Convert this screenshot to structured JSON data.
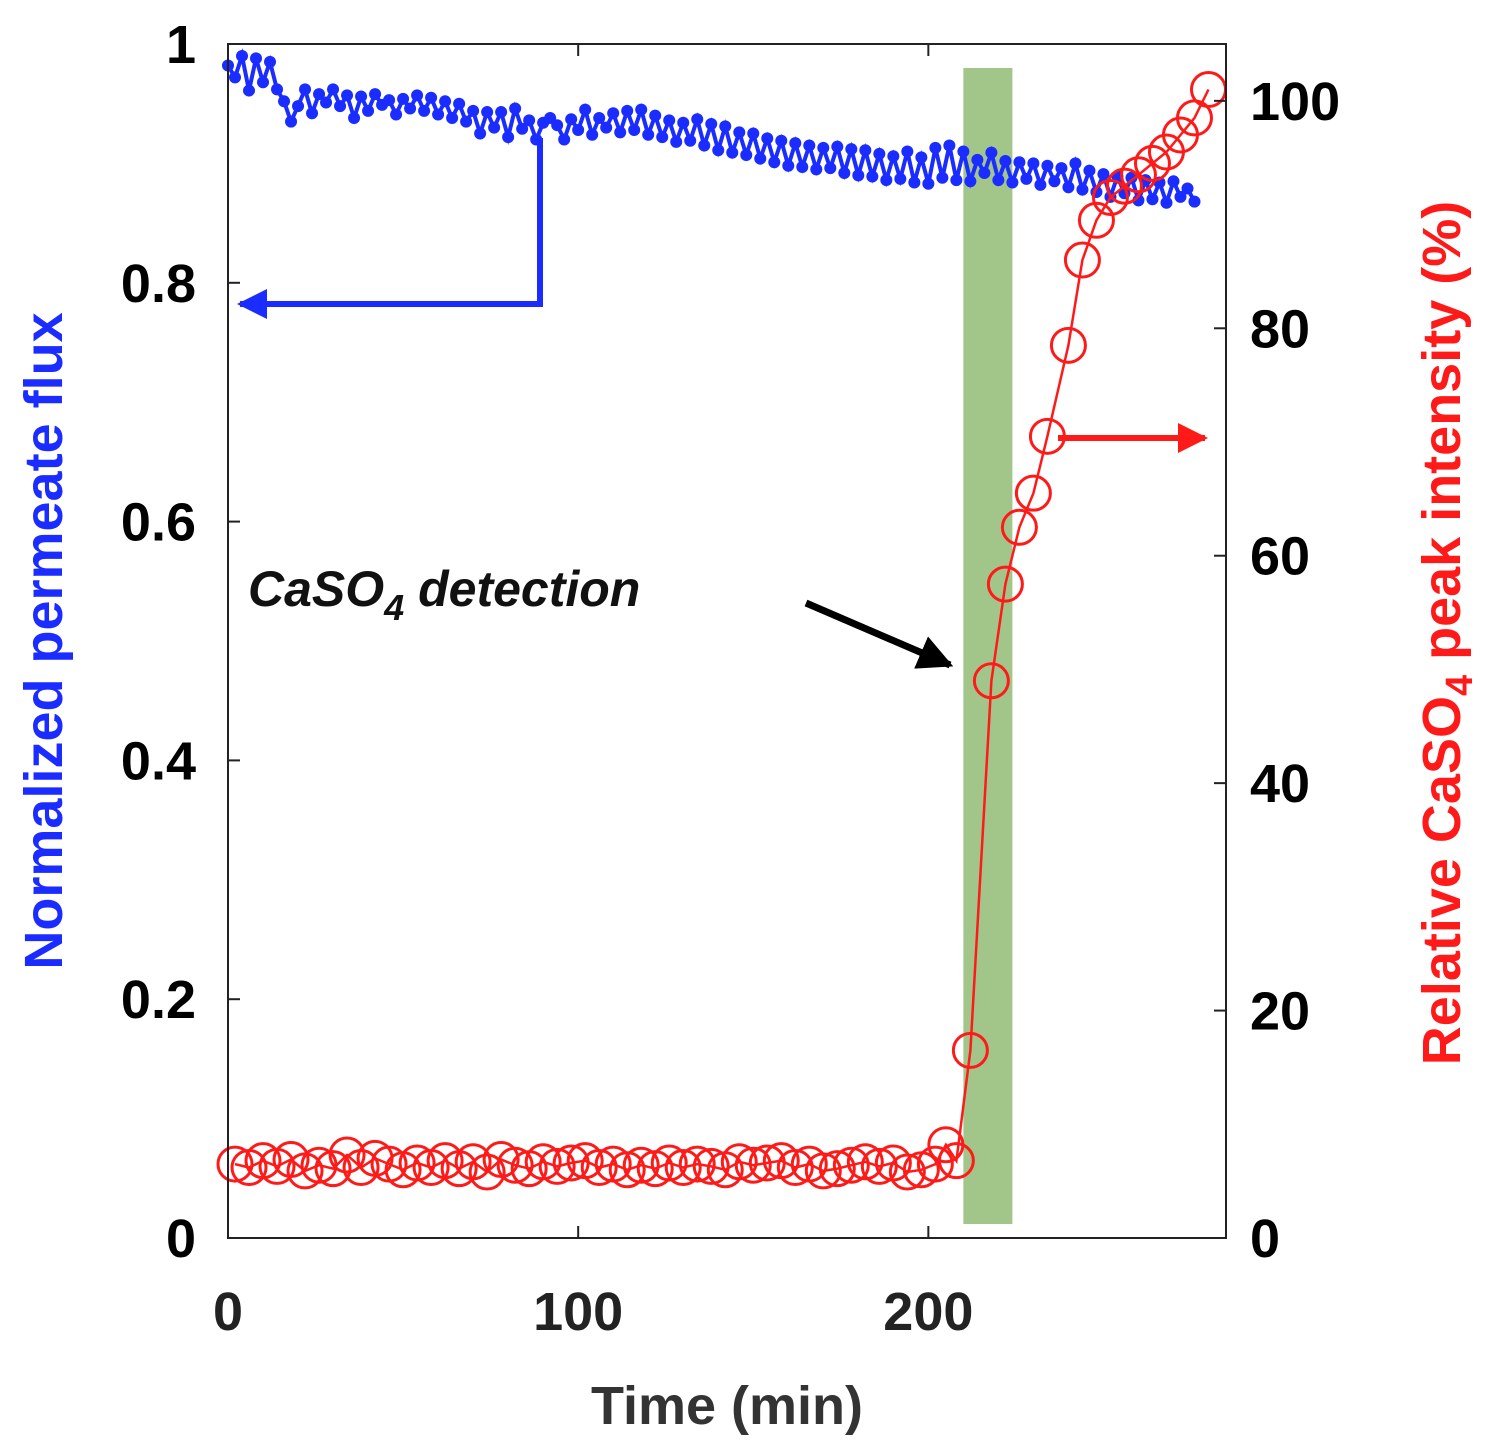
{
  "chart_data": {
    "type": "line",
    "title": "",
    "xlabel": "Time (min)",
    "xlim": [
      0,
      285
    ],
    "xticks": [
      0,
      100,
      200
    ],
    "xtick_labels": [
      "0",
      "100",
      "200"
    ],
    "ylabel_left": "Normalized permeate flux",
    "ylim_left": [
      0,
      1
    ],
    "yticks_left": [
      0,
      0.2,
      0.4,
      0.6,
      0.8,
      1
    ],
    "ytick_labels_left": [
      "0",
      "0.2",
      "0.4",
      "0.6",
      "0.8",
      "1"
    ],
    "ylabel_right": {
      "prefix": "Relative CaSO",
      "subscript": "4",
      "suffix": " peak intensity (%)"
    },
    "ylim_right": [
      0,
      105
    ],
    "yticks_right": [
      0,
      20,
      40,
      60,
      80,
      100
    ],
    "ytick_labels_right": [
      "0",
      "20",
      "40",
      "60",
      "80",
      "100"
    ],
    "grid": false,
    "highlight_band": {
      "x_start": 210,
      "x_end": 224,
      "color": "#9dc384"
    },
    "annotation": {
      "prefix": "CaSO",
      "subscript": "4",
      "suffix": " detection",
      "points_to_time": 207
    },
    "axis_arrows": [
      {
        "series": "Normalized permeate flux",
        "direction": "left",
        "color": "#1a2cff"
      },
      {
        "series": "Relative CaSO4 peak intensity",
        "direction": "right",
        "color": "#ff1a1a"
      }
    ],
    "series": [
      {
        "name": "Normalized permeate flux",
        "axis": "left",
        "color": "#1a2cff",
        "marker": "filled-dot",
        "x": [
          0,
          2,
          4,
          6,
          8,
          10,
          12,
          14,
          16,
          18,
          20,
          22,
          24,
          26,
          28,
          30,
          32,
          34,
          36,
          38,
          40,
          42,
          44,
          46,
          48,
          50,
          52,
          54,
          56,
          58,
          60,
          62,
          64,
          66,
          68,
          70,
          72,
          74,
          76,
          78,
          80,
          82,
          84,
          86,
          88,
          90,
          92,
          94,
          96,
          98,
          100,
          102,
          104,
          106,
          108,
          110,
          112,
          114,
          116,
          118,
          120,
          122,
          124,
          126,
          128,
          130,
          132,
          134,
          136,
          138,
          140,
          142,
          144,
          146,
          148,
          150,
          152,
          154,
          156,
          158,
          160,
          162,
          164,
          166,
          168,
          170,
          172,
          174,
          176,
          178,
          180,
          182,
          184,
          186,
          188,
          190,
          192,
          194,
          196,
          198,
          200,
          202,
          204,
          206,
          208,
          210,
          212,
          214,
          216,
          218,
          220,
          222,
          224,
          226,
          228,
          230,
          232,
          234,
          236,
          238,
          240,
          242,
          244,
          246,
          248,
          250,
          252,
          254,
          256,
          258,
          260,
          262,
          264,
          266,
          268,
          270,
          272,
          274,
          276
        ],
        "y": [
          0.982,
          0.972,
          0.99,
          0.961,
          0.988,
          0.968,
          0.985,
          0.962,
          0.952,
          0.935,
          0.948,
          0.962,
          0.942,
          0.958,
          0.951,
          0.962,
          0.948,
          0.957,
          0.938,
          0.956,
          0.944,
          0.958,
          0.949,
          0.953,
          0.941,
          0.954,
          0.946,
          0.957,
          0.944,
          0.955,
          0.941,
          0.952,
          0.938,
          0.95,
          0.935,
          0.944,
          0.925,
          0.943,
          0.93,
          0.943,
          0.922,
          0.946,
          0.929,
          0.936,
          0.92,
          0.934,
          0.938,
          0.932,
          0.92,
          0.937,
          0.928,
          0.945,
          0.924,
          0.938,
          0.93,
          0.942,
          0.926,
          0.944,
          0.928,
          0.945,
          0.924,
          0.94,
          0.922,
          0.936,
          0.918,
          0.934,
          0.919,
          0.937,
          0.915,
          0.933,
          0.911,
          0.931,
          0.909,
          0.926,
          0.907,
          0.925,
          0.904,
          0.921,
          0.901,
          0.919,
          0.898,
          0.917,
          0.897,
          0.915,
          0.895,
          0.913,
          0.896,
          0.914,
          0.892,
          0.912,
          0.89,
          0.911,
          0.889,
          0.908,
          0.886,
          0.906,
          0.887,
          0.91,
          0.884,
          0.905,
          0.883,
          0.913,
          0.888,
          0.915,
          0.886,
          0.91,
          0.885,
          0.903,
          0.892,
          0.909,
          0.886,
          0.902,
          0.884,
          0.901,
          0.887,
          0.9,
          0.882,
          0.898,
          0.885,
          0.896,
          0.88,
          0.9,
          0.878,
          0.894,
          0.876,
          0.891,
          0.872,
          0.889,
          0.875,
          0.888,
          0.869,
          0.886,
          0.87,
          0.884,
          0.867,
          0.885,
          0.872,
          0.879,
          0.868
        ]
      },
      {
        "name": "Relative CaSO4 peak intensity",
        "axis": "right",
        "color": "#ff1a1a",
        "marker": "open-circle",
        "x": [
          2,
          6,
          10,
          14,
          18,
          22,
          26,
          30,
          34,
          38,
          42,
          46,
          50,
          54,
          58,
          62,
          66,
          70,
          74,
          78,
          82,
          86,
          90,
          94,
          98,
          102,
          106,
          110,
          114,
          118,
          122,
          126,
          130,
          134,
          138,
          142,
          146,
          150,
          154,
          158,
          162,
          166,
          170,
          174,
          178,
          182,
          186,
          190,
          194,
          198,
          202,
          205,
          208,
          212,
          218,
          222,
          226,
          230,
          234,
          240,
          244,
          248,
          252,
          256,
          260,
          264,
          268,
          272,
          276,
          280
        ],
        "y": [
          6.5,
          6.2,
          6.8,
          6.3,
          6.9,
          5.9,
          6.4,
          6.1,
          7.3,
          6.2,
          7.0,
          6.5,
          6.0,
          6.6,
          6.2,
          6.8,
          6.1,
          6.7,
          5.8,
          6.9,
          6.4,
          6.1,
          6.7,
          6.3,
          6.6,
          6.8,
          6.2,
          6.5,
          6.0,
          6.4,
          6.1,
          6.6,
          6.2,
          6.5,
          6.3,
          6.0,
          6.7,
          6.4,
          6.6,
          6.8,
          6.2,
          6.5,
          5.9,
          6.1,
          6.4,
          6.7,
          6.3,
          6.6,
          5.8,
          6.0,
          6.5,
          8.2,
          6.8,
          16.5,
          49.0,
          57.5,
          62.5,
          65.5,
          70.5,
          78.5,
          86.0,
          89.5,
          91.5,
          92.5,
          93.5,
          94.5,
          95.5,
          97.0,
          98.5,
          101.0
        ]
      }
    ]
  }
}
